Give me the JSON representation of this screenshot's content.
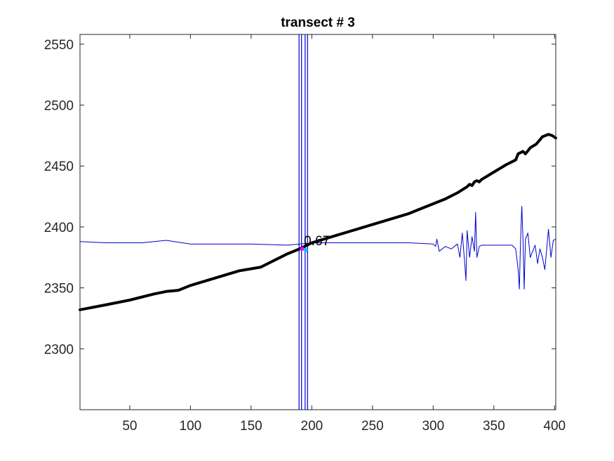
{
  "chart_data": {
    "type": "line",
    "title": "transect # 3",
    "xlabel": "",
    "ylabel": "",
    "xlim": [
      9,
      401
    ],
    "ylim": [
      2250,
      2558
    ],
    "xticks": [
      50,
      100,
      150,
      200,
      250,
      300,
      350,
      400
    ],
    "yticks": [
      2300,
      2350,
      2400,
      2450,
      2500,
      2550
    ],
    "grid": false,
    "series": [
      {
        "color": "#000000",
        "style": "thick",
        "x": [
          9,
          30,
          50,
          70,
          80,
          90,
          100,
          120,
          140,
          158,
          170,
          180,
          190,
          200,
          220,
          240,
          260,
          280,
          290,
          300,
          310,
          320,
          328,
          330,
          332,
          334,
          336,
          338,
          340,
          350,
          360,
          368,
          370,
          372,
          374,
          376,
          380,
          385,
          390,
          395,
          398,
          401
        ],
        "y": [
          2332,
          2336,
          2340,
          2345,
          2347,
          2348,
          2352,
          2358,
          2364,
          2367,
          2373,
          2378,
          2382,
          2387,
          2393,
          2399,
          2405,
          2411,
          2415,
          2419,
          2423,
          2428,
          2433,
          2435,
          2434,
          2437,
          2438,
          2437,
          2439,
          2445,
          2451,
          2455,
          2460,
          2461,
          2462,
          2460,
          2465,
          2468,
          2474,
          2476,
          2475,
          2473
        ]
      },
      {
        "color": "#0000cc",
        "style": "thin",
        "x": [
          9,
          30,
          60,
          80,
          100,
          150,
          180,
          190,
          200,
          250,
          280,
          300,
          302,
          303,
          305,
          310,
          315,
          320,
          322,
          324,
          326,
          327,
          328,
          330,
          332,
          334,
          335,
          336,
          338,
          340,
          350,
          360,
          365,
          368,
          370,
          371,
          372,
          373,
          374,
          375,
          376,
          378,
          380,
          382,
          384,
          386,
          388,
          390,
          392,
          395,
          397,
          399,
          401
        ],
        "y": [
          2388,
          2387,
          2387,
          2389,
          2386,
          2386,
          2385,
          2386,
          2387,
          2387,
          2387,
          2386,
          2384,
          2390,
          2380,
          2384,
          2382,
          2386,
          2375,
          2395,
          2370,
          2356,
          2397,
          2375,
          2392,
          2380,
          2412,
          2375,
          2384,
          2385,
          2385,
          2385,
          2385,
          2382,
          2365,
          2349,
          2388,
          2417,
          2390,
          2349,
          2390,
          2395,
          2375,
          2380,
          2385,
          2370,
          2382,
          2375,
          2365,
          2398,
          2375,
          2389,
          2390
        ]
      }
    ],
    "vertical_lines": [
      {
        "x": 189.5,
        "color": "#0000cc"
      },
      {
        "x": 191.5,
        "color": "#0000cc"
      },
      {
        "x": 194.5,
        "color": "#0000cc"
      },
      {
        "x": 196.5,
        "color": "#0000cc"
      }
    ],
    "markers": [
      {
        "x": 192,
        "y": 2382,
        "color": "#ff00ff"
      },
      {
        "x": 195,
        "y": 2381,
        "color": "#00c8ff"
      }
    ],
    "annotations": [
      {
        "text": "0.67",
        "x": 193.5,
        "y": 2385
      }
    ]
  }
}
